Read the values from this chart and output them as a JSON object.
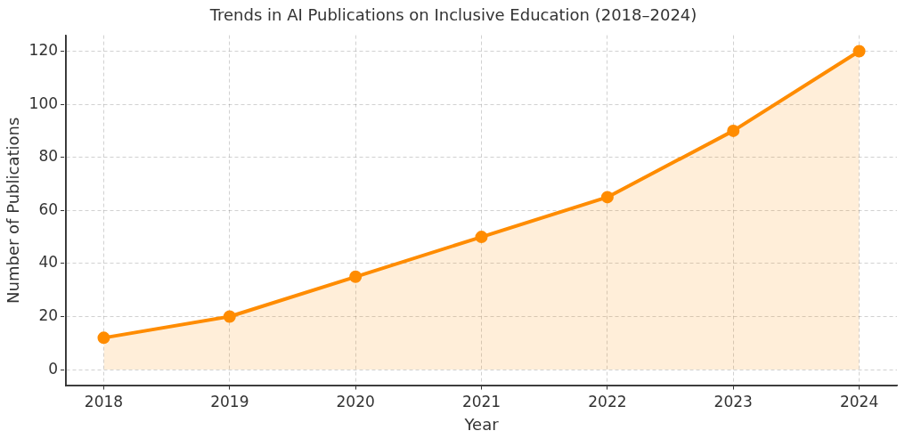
{
  "chart_data": {
    "type": "area",
    "title": "Trends in AI Publications on Inclusive Education (2018–2024)",
    "xlabel": "Year",
    "ylabel": "Number of Publications",
    "x": [
      2018,
      2019,
      2020,
      2021,
      2022,
      2023,
      2024
    ],
    "series": [
      {
        "color": "#ff8c00",
        "values": [
          12,
          20,
          35,
          50,
          65,
          90,
          120
        ]
      }
    ],
    "xlim": [
      2017.7,
      2024.3
    ],
    "xticks": [
      2018,
      2019,
      2020,
      2021,
      2022,
      2023,
      2024
    ],
    "ylim": [
      -6,
      126
    ],
    "yticks": [
      0,
      20,
      40,
      60,
      80,
      100,
      120
    ],
    "grid": true,
    "marker": "circle",
    "line_style": "solid",
    "legend": false
  }
}
